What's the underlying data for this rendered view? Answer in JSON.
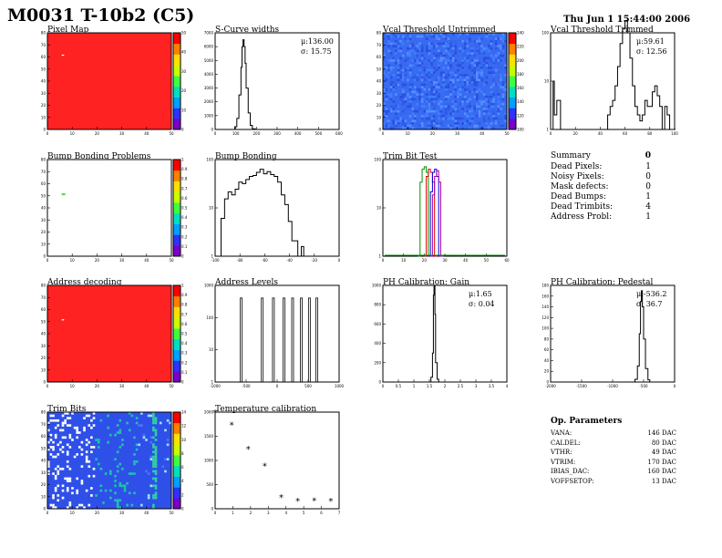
{
  "header": {
    "title": "M0031 T-10b2 (C5)",
    "date": "Thu Jun  1 15:44:00 2006"
  },
  "panels": {
    "pixel_map": "Pixel Map",
    "scurve": "S-Curve widths",
    "vcal_untrimmed": "Vcal Threshold Untrimmed",
    "vcal_trimmed": "Vcal Threshold Trimmed",
    "bump_problems": "Bump Bonding Problems",
    "bump_bonding": "Bump Bonding",
    "trim_bit_test": "Trim Bit Test",
    "address_decoding": "Address decoding",
    "address_levels": "Address Levels",
    "ph_gain": "PH Calibration: Gain",
    "ph_pedestal": "PH Calibration: Pedestal",
    "trim_bits": "Trim Bits",
    "temperature": "Temperature calibration"
  },
  "summary": {
    "title": "Summary",
    "total": "0",
    "rows": [
      {
        "label": "Dead Pixels:",
        "value": "1"
      },
      {
        "label": "Noisy Pixels:",
        "value": "0"
      },
      {
        "label": "Mask defects:",
        "value": "0"
      },
      {
        "label": "Dead Bumps:",
        "value": "1"
      },
      {
        "label": "Dead Trimbits:",
        "value": "4"
      },
      {
        "label": "Address Probl:",
        "value": "1"
      }
    ]
  },
  "op_params": {
    "title": "Op. Parameters",
    "rows": [
      {
        "label": "VANA:",
        "value": "146 DAC"
      },
      {
        "label": "CALDEL:",
        "value": "80 DAC"
      },
      {
        "label": "VTHR:",
        "value": "49 DAC"
      },
      {
        "label": "VTRIM:",
        "value": "170 DAC"
      },
      {
        "label": "IBIAS_DAC:",
        "value": "160 DAC"
      },
      {
        "label": "VOFFSETOP:",
        "value": "13 DAC"
      }
    ]
  },
  "colors": {
    "map_red": "#ff2222",
    "map_blue": "#3355ee",
    "palette": [
      "#7a00c8",
      "#3030ff",
      "#00a0ff",
      "#00e0c0",
      "#40ff40",
      "#c8ff00",
      "#ffe000",
      "#ff8000",
      "#ff0000"
    ]
  },
  "chart_data": [
    {
      "type": "heatmap",
      "title": "Pixel Map",
      "xlim": [
        0,
        52
      ],
      "ylim": [
        0,
        80
      ],
      "x_ticks": [
        "0",
        "10",
        "20",
        "30",
        "40",
        "50"
      ],
      "y_ticks": [
        "0",
        "10",
        "20",
        "30",
        "40",
        "50",
        "60",
        "70",
        "80"
      ],
      "z_ticks": [
        "0",
        "10",
        "20",
        "30",
        "40",
        "50"
      ],
      "fill_value": 50,
      "outliers": [
        {
          "x": 6,
          "y": 61,
          "z": 0
        }
      ]
    },
    {
      "type": "line",
      "title": "S-Curve widths",
      "xlim": [
        0,
        600
      ],
      "ylim": [
        0,
        7000
      ],
      "x_ticks": [
        "0",
        "100",
        "200",
        "300",
        "400",
        "500",
        "600"
      ],
      "y_ticks": [
        "0",
        "1000",
        "2000",
        "3000",
        "4000",
        "5000",
        "6000",
        "7000"
      ],
      "mean": "μ:136.00",
      "rms": "σ: 15.75",
      "x": [
        80,
        95,
        105,
        115,
        125,
        130,
        135,
        140,
        145,
        150,
        160,
        170,
        180,
        195
      ],
      "y": [
        0,
        200,
        800,
        2500,
        4500,
        6000,
        6500,
        6000,
        4800,
        3000,
        1200,
        300,
        50,
        0
      ]
    },
    {
      "type": "heatmap",
      "title": "Vcal Threshold Untrimmed",
      "xlim": [
        0,
        52
      ],
      "ylim": [
        0,
        80
      ],
      "x_ticks": [
        "0",
        "10",
        "20",
        "30",
        "40",
        "50"
      ],
      "y_ticks": [
        "0",
        "10",
        "20",
        "30",
        "40",
        "50",
        "60",
        "70",
        "80"
      ],
      "z_ticks": [
        "100",
        "120",
        "140",
        "160",
        "180",
        "200",
        "220",
        "240"
      ],
      "typical_value": 130
    },
    {
      "type": "line",
      "title": "Vcal Threshold Trimmed",
      "xlim": [
        0,
        100
      ],
      "ylim": [
        1,
        100
      ],
      "log_y": true,
      "x_ticks": [
        "0",
        "20",
        "40",
        "60",
        "80",
        "100"
      ],
      "y_ticks": [
        "1",
        "10",
        "100"
      ],
      "mean": "μ:59.61",
      "rms": "σ: 12.56",
      "x": [
        0,
        2,
        3,
        5,
        8,
        12,
        15,
        20,
        25,
        30,
        35,
        40,
        44,
        46,
        48,
        50,
        52,
        54,
        56,
        58,
        60,
        62,
        64,
        66,
        68,
        70,
        72,
        74,
        76,
        78,
        80,
        82,
        84,
        86,
        88,
        90,
        92,
        94,
        96,
        98,
        100
      ],
      "y": [
        1,
        10,
        2,
        4,
        1,
        1,
        1,
        1,
        1,
        1,
        1,
        1,
        1,
        2,
        3,
        4,
        8,
        20,
        60,
        120,
        180,
        100,
        30,
        8,
        3,
        2,
        1.5,
        2,
        4,
        3,
        3,
        6,
        8,
        5,
        3,
        1,
        3,
        2,
        1,
        1,
        1
      ]
    },
    {
      "type": "heatmap",
      "title": "Bump Bonding Problems",
      "xlim": [
        0,
        52
      ],
      "ylim": [
        0,
        80
      ],
      "x_ticks": [
        "0",
        "10",
        "20",
        "30",
        "40",
        "50"
      ],
      "y_ticks": [
        "0",
        "10",
        "20",
        "30",
        "40",
        "50",
        "60",
        "70",
        "80"
      ],
      "z_ticks": [
        "0",
        "0.1",
        "0.2",
        "0.3",
        "0.4",
        "0.5",
        "0.6",
        "0.7",
        "0.8",
        "0.9",
        "1"
      ],
      "fill_value": 0,
      "outliers": [
        {
          "x": 6,
          "y": 51,
          "z": 0.4
        }
      ]
    },
    {
      "type": "line",
      "title": "Bump Bonding",
      "xlim": [
        -100,
        5
      ],
      "ylim": [
        1,
        1000
      ],
      "log_y": true,
      "x_ticks": [
        "-100",
        "-80",
        "-60",
        "-40",
        "-20",
        "0"
      ],
      "y_ticks": [
        "1",
        "10",
        "100"
      ],
      "x": [
        -98,
        -95,
        -92,
        -89,
        -86,
        -83,
        -80,
        -77,
        -74,
        -71,
        -68,
        -65,
        -62,
        -59,
        -56,
        -53,
        -50,
        -47,
        -44,
        -41,
        -38,
        -35,
        -30,
        -27,
        -25
      ],
      "y": [
        1,
        15,
        60,
        100,
        80,
        120,
        200,
        180,
        240,
        300,
        320,
        400,
        500,
        360,
        420,
        340,
        300,
        200,
        80,
        40,
        12,
        3,
        1,
        2,
        1
      ]
    },
    {
      "type": "line",
      "title": "Trim Bit Test",
      "xlim": [
        0,
        60
      ],
      "ylim": [
        1,
        1000
      ],
      "log_y": true,
      "x_ticks": [
        "0",
        "10",
        "20",
        "30",
        "40",
        "50",
        "60"
      ],
      "y_ticks": [
        "1",
        "10",
        "100"
      ],
      "series": [
        {
          "color": "#009000",
          "x": [
            17,
            18,
            19,
            20,
            21,
            22,
            23
          ],
          "y": [
            1,
            200,
            500,
            600,
            400,
            1,
            1
          ]
        },
        {
          "color": "#dd0000",
          "x": [
            20,
            21,
            22,
            23,
            24,
            25,
            26
          ],
          "y": [
            1,
            300,
            500,
            400,
            200,
            1,
            1
          ]
        },
        {
          "color": "#0000dd",
          "x": [
            22,
            23,
            24,
            25,
            26,
            27,
            28
          ],
          "y": [
            1,
            100,
            400,
            500,
            300,
            1,
            1
          ]
        },
        {
          "color": "#aa00aa",
          "x": [
            23,
            24,
            25,
            26,
            27,
            28,
            29
          ],
          "y": [
            1,
            80,
            300,
            450,
            200,
            1,
            1
          ]
        }
      ]
    },
    {
      "type": "heatmap",
      "title": "Address decoding",
      "xlim": [
        0,
        52
      ],
      "ylim": [
        0,
        80
      ],
      "x_ticks": [
        "0",
        "10",
        "20",
        "30",
        "40",
        "50"
      ],
      "y_ticks": [
        "0",
        "10",
        "20",
        "30",
        "40",
        "50",
        "60",
        "70",
        "80"
      ],
      "z_ticks": [
        "0",
        "0.1",
        "0.2",
        "0.3",
        "0.4",
        "0.5",
        "0.6",
        "0.7",
        "0.8",
        "0.9",
        "1"
      ],
      "fill_value": 1,
      "outliers": [
        {
          "x": 6,
          "y": 51,
          "z": 0
        }
      ]
    },
    {
      "type": "bar",
      "title": "Address Levels",
      "xlim": [
        -1000,
        1000
      ],
      "ylim": [
        1,
        10000
      ],
      "log_y": true,
      "x_ticks": [
        "-1000",
        "-500",
        "0",
        "500",
        "1000"
      ],
      "y_ticks": [
        "1",
        "10",
        "100",
        "1000"
      ],
      "x": [
        -580,
        -240,
        -60,
        110,
        250,
        390,
        520,
        640
      ],
      "y": [
        3000,
        3000,
        3000,
        3000,
        3000,
        3000,
        3000,
        3000
      ]
    },
    {
      "type": "line",
      "title": "PH Calibration: Gain",
      "xlim": [
        0,
        4
      ],
      "ylim": [
        0,
        1000
      ],
      "x_ticks": [
        "0",
        "0.5",
        "1",
        "1.5",
        "2",
        "2.5",
        "3",
        "3.5",
        "4"
      ],
      "y_ticks": [
        "0",
        "200",
        "400",
        "600",
        "800",
        "1000"
      ],
      "mean": "μ:1.65",
      "rms": "σ: 0.04",
      "x": [
        1.5,
        1.55,
        1.6,
        1.63,
        1.65,
        1.68,
        1.7,
        1.75,
        1.8
      ],
      "y": [
        0,
        50,
        300,
        900,
        1000,
        700,
        200,
        30,
        0
      ]
    },
    {
      "type": "line",
      "title": "PH Calibration: Pedestal",
      "xlim": [
        -2000,
        0
      ],
      "ylim": [
        0,
        180
      ],
      "x_ticks": [
        "-2000",
        "-1500",
        "-1000",
        "-500",
        "0"
      ],
      "y_ticks": [
        "0",
        "20",
        "40",
        "60",
        "80",
        "100",
        "120",
        "140",
        "160",
        "180"
      ],
      "mean": "μ:-536.2",
      "rms": "σ: 36.7",
      "x": [
        -680,
        -640,
        -600,
        -570,
        -550,
        -536,
        -520,
        -500,
        -470,
        -430,
        -400
      ],
      "y": [
        0,
        5,
        30,
        90,
        150,
        170,
        140,
        80,
        25,
        4,
        0
      ]
    },
    {
      "type": "heatmap",
      "title": "Trim Bits",
      "xlim": [
        0,
        52
      ],
      "ylim": [
        0,
        80
      ],
      "x_ticks": [
        "0",
        "10",
        "20",
        "30",
        "40",
        "50"
      ],
      "y_ticks": [
        "0",
        "10",
        "20",
        "30",
        "40",
        "50",
        "60",
        "70",
        "80"
      ],
      "z_ticks": [
        "0",
        "2",
        "4",
        "6",
        "8",
        "10",
        "12",
        "14"
      ]
    },
    {
      "type": "scatter",
      "title": "Temperature calibration",
      "xlim": [
        0,
        7.5
      ],
      "ylim": [
        0,
        2000
      ],
      "x_ticks": [
        "0",
        "1",
        "2",
        "3",
        "4",
        "5",
        "6",
        "7"
      ],
      "y_ticks": [
        "0",
        "500",
        "1000",
        "1500",
        "2000"
      ],
      "x": [
        0,
        1,
        2,
        3,
        4,
        5,
        6,
        7
      ],
      "y": [
        2000,
        1750,
        1250,
        900,
        250,
        170,
        180,
        170
      ]
    }
  ]
}
